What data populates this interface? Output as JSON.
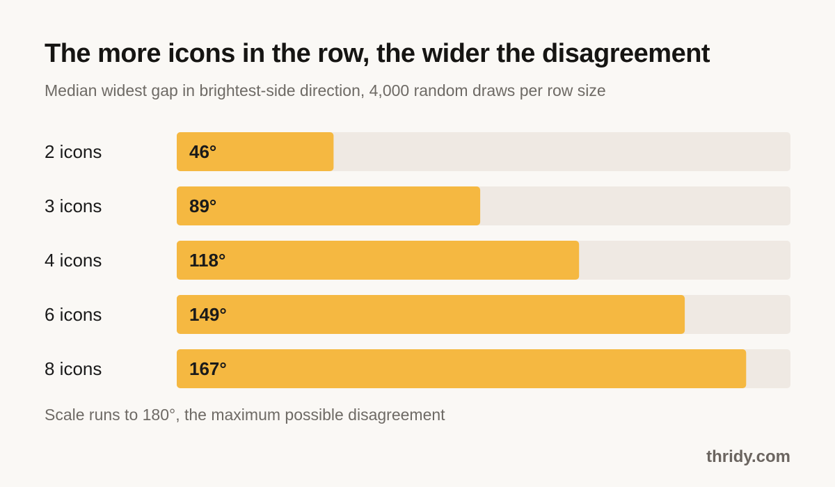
{
  "title": "The more icons in the row, the wider the disagreement",
  "subtitle": "Median widest gap in brightest-side direction, 4,000 random draws per row size",
  "footnote": "Scale runs to 180°, the maximum possible disagreement",
  "brand": "thridy.com",
  "colors": {
    "bar": "#f5b841",
    "track": "#efe9e3",
    "label": "#1a1a1a",
    "value": "#1a1a1a"
  },
  "chart_data": {
    "type": "bar",
    "orientation": "horizontal",
    "categories": [
      "2 icons",
      "3 icons",
      "4 icons",
      "6 icons",
      "8 icons"
    ],
    "values": [
      46,
      89,
      118,
      149,
      167
    ],
    "value_labels": [
      "46°",
      "89°",
      "118°",
      "149°",
      "167°"
    ],
    "xlim": [
      0,
      180
    ],
    "grid": false,
    "legend": false
  }
}
